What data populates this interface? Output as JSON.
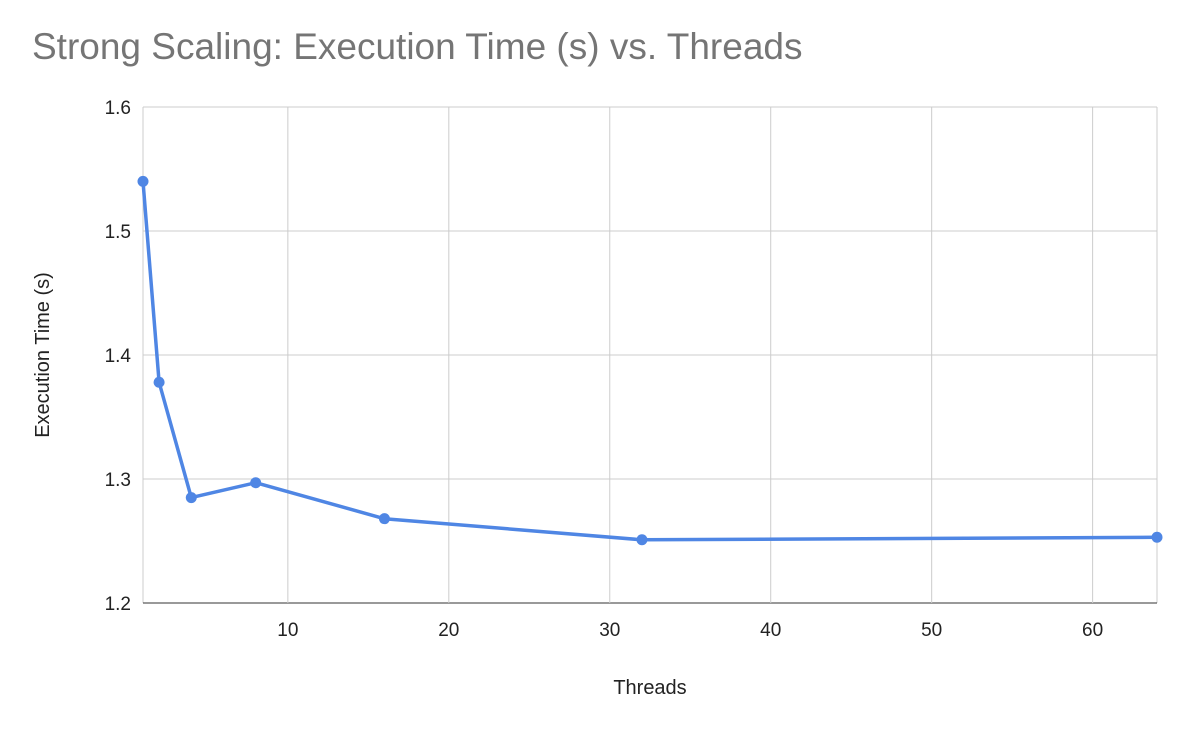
{
  "chart_data": {
    "type": "line",
    "title": "Strong Scaling: Execution Time (s) vs. Threads",
    "xlabel": "Threads",
    "ylabel": "Execution Time (s)",
    "xlim": [
      1,
      64
    ],
    "ylim": [
      1.2,
      1.6
    ],
    "x_ticks": [
      10,
      20,
      30,
      40,
      50,
      60
    ],
    "y_ticks": [
      1.2,
      1.3,
      1.4,
      1.5,
      1.6
    ],
    "grid": true,
    "legend": "none",
    "series": [
      {
        "color": "#4f86e4",
        "x": [
          1,
          2,
          4,
          8,
          16,
          32,
          64
        ],
        "values": [
          1.54,
          1.378,
          1.285,
          1.297,
          1.268,
          1.251,
          1.253
        ]
      }
    ]
  }
}
